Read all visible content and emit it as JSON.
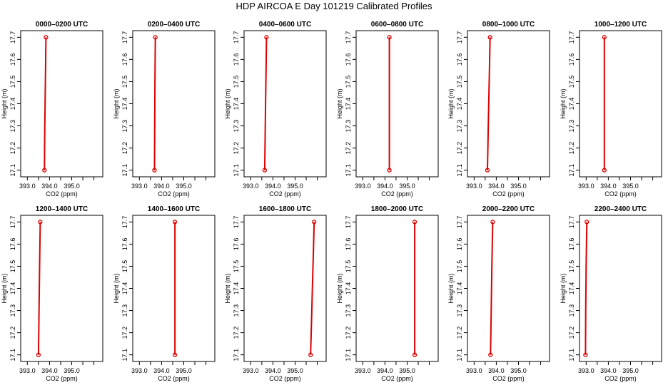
{
  "title": "HDP AIRCOA E  Day 101219  Calibrated Profiles",
  "colors": {
    "series": "#dd0000",
    "axis": "#000000",
    "background": "#ffffff"
  },
  "chart_data": [
    {
      "type": "line",
      "title": "0000–0200 UTC",
      "xlabel": "CO2 (ppm)",
      "ylabel": "Height (m)",
      "xlim": [
        392.7,
        396.4
      ],
      "ylim": [
        17.07,
        17.73
      ],
      "xticks": [
        393.0,
        393.5,
        394.0,
        394.5,
        395.0,
        395.5,
        396.0
      ],
      "xtick_labels": [
        "393.0",
        "",
        "394.0",
        "",
        "395.0",
        "",
        ""
      ],
      "yticks": [
        17.1,
        17.2,
        17.3,
        17.4,
        17.5,
        17.6,
        17.7
      ],
      "endpoints": [
        {
          "x": 393.77,
          "y": 17.1
        },
        {
          "x": 393.84,
          "y": 17.7
        }
      ],
      "profile": [
        {
          "x": 393.77,
          "y": 17.1
        },
        {
          "x": 393.78,
          "y": 17.25
        },
        {
          "x": 393.8,
          "y": 17.4
        },
        {
          "x": 393.82,
          "y": 17.55
        },
        {
          "x": 393.84,
          "y": 17.7
        }
      ]
    },
    {
      "type": "line",
      "title": "0200–0400 UTC",
      "xlabel": "CO2 (ppm)",
      "ylabel": "Height (m)",
      "xlim": [
        392.7,
        396.4
      ],
      "ylim": [
        17.07,
        17.73
      ],
      "xticks": [
        393.0,
        393.5,
        394.0,
        394.5,
        395.0,
        395.5,
        396.0
      ],
      "xtick_labels": [
        "393.0",
        "",
        "394.0",
        "",
        "395.0",
        "",
        ""
      ],
      "yticks": [
        17.1,
        17.2,
        17.3,
        17.4,
        17.5,
        17.6,
        17.7
      ],
      "endpoints": [
        {
          "x": 393.68,
          "y": 17.1
        },
        {
          "x": 393.72,
          "y": 17.7
        }
      ],
      "profile": [
        {
          "x": 393.68,
          "y": 17.1
        },
        {
          "x": 393.69,
          "y": 17.3
        },
        {
          "x": 393.7,
          "y": 17.5
        },
        {
          "x": 393.72,
          "y": 17.7
        }
      ]
    },
    {
      "type": "line",
      "title": "0400–0600 UTC",
      "xlabel": "CO2 (ppm)",
      "ylabel": "Height (m)",
      "xlim": [
        392.7,
        396.4
      ],
      "ylim": [
        17.07,
        17.73
      ],
      "xticks": [
        393.0,
        393.5,
        394.0,
        394.5,
        395.0,
        395.5,
        396.0
      ],
      "xtick_labels": [
        "393.0",
        "",
        "394.0",
        "",
        "395.0",
        "",
        ""
      ],
      "yticks": [
        17.1,
        17.2,
        17.3,
        17.4,
        17.5,
        17.6,
        17.7
      ],
      "endpoints": [
        {
          "x": 393.63,
          "y": 17.1
        },
        {
          "x": 393.71,
          "y": 17.7
        }
      ],
      "profile": [
        {
          "x": 393.63,
          "y": 17.1
        },
        {
          "x": 393.65,
          "y": 17.25
        },
        {
          "x": 393.67,
          "y": 17.4
        },
        {
          "x": 393.69,
          "y": 17.55
        },
        {
          "x": 393.71,
          "y": 17.7
        }
      ]
    },
    {
      "type": "line",
      "title": "0600–0800 UTC",
      "xlabel": "CO2 (ppm)",
      "ylabel": "Height (m)",
      "xlim": [
        392.7,
        396.4
      ],
      "ylim": [
        17.07,
        17.73
      ],
      "xticks": [
        393.0,
        393.5,
        394.0,
        394.5,
        395.0,
        395.5,
        396.0
      ],
      "xtick_labels": [
        "393.0",
        "",
        "394.0",
        "",
        "395.0",
        "",
        ""
      ],
      "yticks": [
        17.1,
        17.2,
        17.3,
        17.4,
        17.5,
        17.6,
        17.7
      ],
      "endpoints": [
        {
          "x": 394.2,
          "y": 17.1
        },
        {
          "x": 394.2,
          "y": 17.7
        }
      ],
      "profile": [
        {
          "x": 394.2,
          "y": 17.1
        },
        {
          "x": 394.2,
          "y": 17.4
        },
        {
          "x": 394.2,
          "y": 17.7
        }
      ]
    },
    {
      "type": "line",
      "title": "0800–1000 UTC",
      "xlabel": "CO2 (ppm)",
      "ylabel": "Height (m)",
      "xlim": [
        392.7,
        396.4
      ],
      "ylim": [
        17.07,
        17.73
      ],
      "xticks": [
        393.0,
        393.5,
        394.0,
        394.5,
        395.0,
        395.5,
        396.0
      ],
      "xtick_labels": [
        "393.0",
        "",
        "394.0",
        "",
        "395.0",
        "",
        ""
      ],
      "yticks": [
        17.1,
        17.2,
        17.3,
        17.4,
        17.5,
        17.6,
        17.7
      ],
      "endpoints": [
        {
          "x": 393.6,
          "y": 17.1
        },
        {
          "x": 393.72,
          "y": 17.7
        }
      ],
      "profile": [
        {
          "x": 393.6,
          "y": 17.1
        },
        {
          "x": 393.63,
          "y": 17.25
        },
        {
          "x": 393.66,
          "y": 17.4
        },
        {
          "x": 393.69,
          "y": 17.55
        },
        {
          "x": 393.72,
          "y": 17.7
        }
      ]
    },
    {
      "type": "line",
      "title": "1000–1200 UTC",
      "xlabel": "CO2 (ppm)",
      "ylabel": "Height (m)",
      "xlim": [
        392.7,
        396.4
      ],
      "ylim": [
        17.07,
        17.73
      ],
      "xticks": [
        393.0,
        393.5,
        394.0,
        394.5,
        395.0,
        395.5,
        396.0
      ],
      "xtick_labels": [
        "393.0",
        "",
        "394.0",
        "",
        "395.0",
        "",
        ""
      ],
      "yticks": [
        17.1,
        17.2,
        17.3,
        17.4,
        17.5,
        17.6,
        17.7
      ],
      "endpoints": [
        {
          "x": 393.82,
          "y": 17.1
        },
        {
          "x": 393.82,
          "y": 17.7
        }
      ],
      "profile": [
        {
          "x": 393.82,
          "y": 17.1
        },
        {
          "x": 393.82,
          "y": 17.4
        },
        {
          "x": 393.82,
          "y": 17.7
        }
      ]
    },
    {
      "type": "line",
      "title": "1200–1400 UTC",
      "xlabel": "CO2 (ppm)",
      "ylabel": "Height (m)",
      "xlim": [
        392.7,
        396.4
      ],
      "ylim": [
        17.07,
        17.73
      ],
      "xticks": [
        393.0,
        393.5,
        394.0,
        394.5,
        395.0,
        395.5,
        396.0
      ],
      "xtick_labels": [
        "393.0",
        "",
        "394.0",
        "",
        "395.0",
        "",
        ""
      ],
      "yticks": [
        17.1,
        17.2,
        17.3,
        17.4,
        17.5,
        17.6,
        17.7
      ],
      "endpoints": [
        {
          "x": 393.5,
          "y": 17.1
        },
        {
          "x": 393.58,
          "y": 17.7
        }
      ],
      "profile": [
        {
          "x": 393.5,
          "y": 17.1
        },
        {
          "x": 393.52,
          "y": 17.25
        },
        {
          "x": 393.54,
          "y": 17.4
        },
        {
          "x": 393.56,
          "y": 17.55
        },
        {
          "x": 393.58,
          "y": 17.7
        }
      ]
    },
    {
      "type": "line",
      "title": "1400–1600 UTC",
      "xlabel": "CO2 (ppm)",
      "ylabel": "Height (m)",
      "xlim": [
        392.7,
        396.4
      ],
      "ylim": [
        17.07,
        17.73
      ],
      "xticks": [
        393.0,
        393.5,
        394.0,
        394.5,
        395.0,
        395.5,
        396.0
      ],
      "xtick_labels": [
        "393.0",
        "",
        "394.0",
        "",
        "395.0",
        "",
        ""
      ],
      "yticks": [
        17.1,
        17.2,
        17.3,
        17.4,
        17.5,
        17.6,
        17.7
      ],
      "endpoints": [
        {
          "x": 394.6,
          "y": 17.1
        },
        {
          "x": 394.6,
          "y": 17.7
        }
      ],
      "profile": [
        {
          "x": 394.6,
          "y": 17.1
        },
        {
          "x": 394.6,
          "y": 17.4
        },
        {
          "x": 394.6,
          "y": 17.7
        }
      ]
    },
    {
      "type": "line",
      "title": "1600–1800 UTC",
      "xlabel": "CO2 (ppm)",
      "ylabel": "Height (m)",
      "xlim": [
        392.7,
        396.4
      ],
      "ylim": [
        17.07,
        17.73
      ],
      "xticks": [
        393.0,
        393.5,
        394.0,
        394.5,
        395.0,
        395.5,
        396.0
      ],
      "xtick_labels": [
        "393.0",
        "",
        "394.0",
        "",
        "395.0",
        "",
        ""
      ],
      "yticks": [
        17.1,
        17.2,
        17.3,
        17.4,
        17.5,
        17.6,
        17.7
      ],
      "endpoints": [
        {
          "x": 395.7,
          "y": 17.1
        },
        {
          "x": 395.86,
          "y": 17.7
        }
      ],
      "profile": [
        {
          "x": 395.7,
          "y": 17.1
        },
        {
          "x": 395.74,
          "y": 17.25
        },
        {
          "x": 395.78,
          "y": 17.4
        },
        {
          "x": 395.82,
          "y": 17.55
        },
        {
          "x": 395.86,
          "y": 17.7
        }
      ]
    },
    {
      "type": "line",
      "title": "1800–2000 UTC",
      "xlabel": "CO2 (ppm)",
      "ylabel": "Height (m)",
      "xlim": [
        392.7,
        396.4
      ],
      "ylim": [
        17.07,
        17.73
      ],
      "xticks": [
        393.0,
        393.5,
        394.0,
        394.5,
        395.0,
        395.5,
        396.0
      ],
      "xtick_labels": [
        "393.0",
        "",
        "394.0",
        "",
        "395.0",
        "",
        ""
      ],
      "yticks": [
        17.1,
        17.2,
        17.3,
        17.4,
        17.5,
        17.6,
        17.7
      ],
      "endpoints": [
        {
          "x": 395.34,
          "y": 17.1
        },
        {
          "x": 395.34,
          "y": 17.7
        }
      ],
      "profile": [
        {
          "x": 395.34,
          "y": 17.1
        },
        {
          "x": 395.34,
          "y": 17.4
        },
        {
          "x": 395.34,
          "y": 17.7
        }
      ]
    },
    {
      "type": "line",
      "title": "2000–2200 UTC",
      "xlabel": "CO2 (ppm)",
      "ylabel": "Height (m)",
      "xlim": [
        392.7,
        396.4
      ],
      "ylim": [
        17.07,
        17.73
      ],
      "xticks": [
        393.0,
        393.5,
        394.0,
        394.5,
        395.0,
        395.5,
        396.0
      ],
      "xtick_labels": [
        "393.0",
        "",
        "394.0",
        "",
        "395.0",
        "",
        ""
      ],
      "yticks": [
        17.1,
        17.2,
        17.3,
        17.4,
        17.5,
        17.6,
        17.7
      ],
      "endpoints": [
        {
          "x": 393.74,
          "y": 17.1
        },
        {
          "x": 393.84,
          "y": 17.7
        }
      ],
      "profile": [
        {
          "x": 393.74,
          "y": 17.1
        },
        {
          "x": 393.77,
          "y": 17.3
        },
        {
          "x": 393.8,
          "y": 17.5
        },
        {
          "x": 393.84,
          "y": 17.7
        }
      ]
    },
    {
      "type": "line",
      "title": "2200–2400 UTC",
      "xlabel": "CO2 (ppm)",
      "ylabel": "Height (m)",
      "xlim": [
        392.7,
        396.4
      ],
      "ylim": [
        17.07,
        17.73
      ],
      "xticks": [
        393.0,
        393.5,
        394.0,
        394.5,
        395.0,
        395.5,
        396.0
      ],
      "xtick_labels": [
        "393.0",
        "",
        "394.0",
        "",
        "395.0",
        "",
        ""
      ],
      "yticks": [
        17.1,
        17.2,
        17.3,
        17.4,
        17.5,
        17.6,
        17.7
      ],
      "endpoints": [
        {
          "x": 392.97,
          "y": 17.1
        },
        {
          "x": 393.03,
          "y": 17.7
        }
      ],
      "profile": [
        {
          "x": 392.97,
          "y": 17.1
        },
        {
          "x": 392.98,
          "y": 17.3
        },
        {
          "x": 393.0,
          "y": 17.5
        },
        {
          "x": 393.03,
          "y": 17.7
        }
      ]
    }
  ]
}
